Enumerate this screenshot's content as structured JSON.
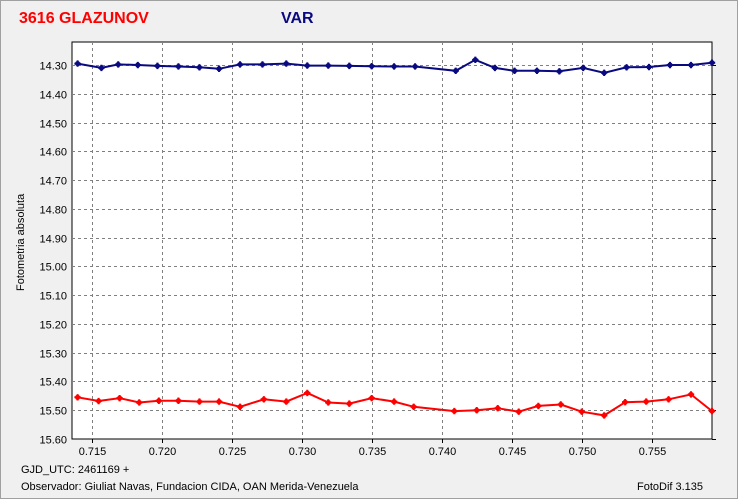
{
  "header": {
    "star_title": "3616 GLAZUNOV",
    "var_title": "VAR",
    "star_color": "#ff0000",
    "var_color": "#0a0a80"
  },
  "chart_data": {
    "type": "line",
    "title": "3616 GLAZUNOV",
    "subtitle": "VAR",
    "xlabel": "",
    "ylabel": "Fotometria absoluta",
    "xlim": [
      0.7136,
      0.7593
    ],
    "ylim": [
      15.6,
      14.22
    ],
    "y_inverted": true,
    "grid": true,
    "x_ticks": [
      "0.715",
      "0.720",
      "0.725",
      "0.730",
      "0.735",
      "0.740",
      "0.745",
      "0.750",
      "0.755"
    ],
    "x_tick_values": [
      0.715,
      0.72,
      0.725,
      0.73,
      0.735,
      0.74,
      0.745,
      0.75,
      0.755
    ],
    "y_ticks": [
      "14.30",
      "14.40",
      "14.50",
      "14.60",
      "14.70",
      "14.80",
      "14.90",
      "15.00",
      "15.10",
      "15.20",
      "15.30",
      "15.40",
      "15.50",
      "15.60"
    ],
    "y_tick_values": [
      14.3,
      14.4,
      14.5,
      14.6,
      14.7,
      14.8,
      14.9,
      15.0,
      15.1,
      15.2,
      15.3,
      15.4,
      15.5,
      15.6
    ],
    "series": [
      {
        "color": "#0a0a80",
        "x": [
          0.714,
          0.7157,
          0.7169,
          0.7183,
          0.7197,
          0.7212,
          0.7227,
          0.7241,
          0.7256,
          0.7272,
          0.7289,
          0.7304,
          0.7319,
          0.7334,
          0.735,
          0.7366,
          0.7381,
          0.741,
          0.7424,
          0.7438,
          0.7452,
          0.7468,
          0.7484,
          0.7501,
          0.7516,
          0.7532,
          0.7548,
          0.7563,
          0.7578,
          0.7593
        ],
        "values": [
          14.295,
          14.31,
          14.298,
          14.3,
          14.303,
          14.305,
          14.308,
          14.313,
          14.298,
          14.298,
          14.295,
          14.302,
          14.302,
          14.303,
          14.304,
          14.305,
          14.305,
          14.32,
          14.282,
          14.31,
          14.32,
          14.32,
          14.322,
          14.31,
          14.327,
          14.308,
          14.307,
          14.3,
          14.3,
          14.292
        ]
      },
      {
        "color": "#ff0000",
        "x": [
          0.714,
          0.7155,
          0.717,
          0.7184,
          0.7198,
          0.7212,
          0.7227,
          0.7241,
          0.7256,
          0.7273,
          0.7289,
          0.7304,
          0.7319,
          0.7334,
          0.735,
          0.7366,
          0.738,
          0.7409,
          0.7425,
          0.744,
          0.7455,
          0.7469,
          0.7485,
          0.75,
          0.7516,
          0.7531,
          0.7546,
          0.7562,
          0.7578,
          0.7593
        ],
        "values": [
          15.455,
          15.468,
          15.458,
          15.473,
          15.467,
          15.467,
          15.47,
          15.47,
          15.488,
          15.462,
          15.47,
          15.44,
          15.473,
          15.477,
          15.458,
          15.47,
          15.488,
          15.503,
          15.5,
          15.493,
          15.505,
          15.485,
          15.48,
          15.505,
          15.518,
          15.472,
          15.47,
          15.462,
          15.445,
          15.503
        ]
      }
    ]
  },
  "footer": {
    "gjd": "GJD_UTC: 2461169 +",
    "observer": "Observador: Giuliat Navas, Fundacion CIDA, OAN  Merida-Venezuela",
    "software": "FotoDif 3.135"
  }
}
